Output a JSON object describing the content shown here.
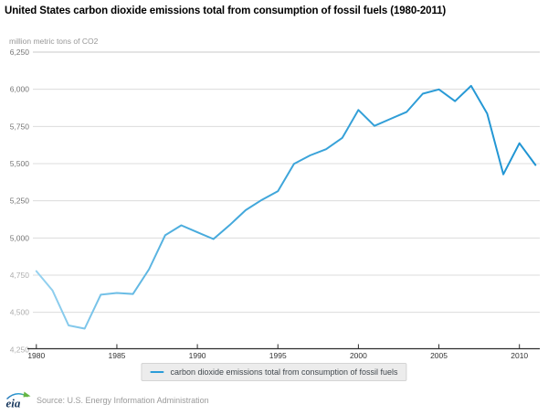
{
  "page": {
    "title": "United States carbon dioxide emissions total from consumption of fossil fuels (1980-2011)",
    "unit_label": "million metric tons of CO2"
  },
  "chart_data": {
    "type": "line",
    "title": "United States carbon dioxide emissions total from consumption of fossil fuels (1980-2011)",
    "ylabel": "million metric tons of CO2",
    "xlabel": "",
    "ylim": [
      4250,
      6250
    ],
    "ytick_step": 250,
    "grid": true,
    "legend_position": "bottom",
    "x": [
      1980,
      1981,
      1982,
      1983,
      1984,
      1985,
      1986,
      1987,
      1988,
      1989,
      1990,
      1991,
      1992,
      1993,
      1994,
      1995,
      1996,
      1997,
      1998,
      1999,
      2000,
      2001,
      2002,
      2003,
      2004,
      2005,
      2006,
      2007,
      2008,
      2009,
      2010,
      2011
    ],
    "series": [
      {
        "name": "carbon dioxide emissions total from consumption of fossil fuels",
        "values": [
          4777,
          4648,
          4412,
          4390,
          4618,
          4630,
          4623,
          4790,
          5018,
          5085,
          5038,
          4993,
          5086,
          5187,
          5256,
          5315,
          5499,
          5555,
          5597,
          5673,
          5861,
          5754,
          5801,
          5848,
          5970,
          5999,
          5920,
          6023,
          5837,
          5428,
          5637,
          5491
        ]
      }
    ],
    "yticks": [
      {
        "value": 6250,
        "label": "6,250",
        "dim": false
      },
      {
        "value": 6000,
        "label": "6,000",
        "dim": false
      },
      {
        "value": 5750,
        "label": "5,750",
        "dim": false
      },
      {
        "value": 5500,
        "label": "5,500",
        "dim": false
      },
      {
        "value": 5250,
        "label": "5,250",
        "dim": false
      },
      {
        "value": 5000,
        "label": "5,000",
        "dim": false
      },
      {
        "value": 4750,
        "label": "4,750",
        "dim": true
      },
      {
        "value": 4500,
        "label": "4,500",
        "dim": true
      },
      {
        "value": 4250,
        "label": "4,250",
        "dim": true
      }
    ],
    "xticks": [
      {
        "year": 1980,
        "label": "1980"
      },
      {
        "year": 1985,
        "label": "1985"
      },
      {
        "year": 1990,
        "label": "1990"
      },
      {
        "year": 1995,
        "label": "1995"
      },
      {
        "year": 2000,
        "label": "2000"
      },
      {
        "year": 2005,
        "label": "2005"
      },
      {
        "year": 2010,
        "label": "2010"
      }
    ],
    "line_colors": [
      "#96d2f0",
      "#4aacdd",
      "#1e94d3"
    ],
    "grid_color": "#dcdcdc",
    "grid_color_top": "#c8c8c8",
    "axis_color": "#2e2e2e",
    "axis_label_color": "#757575",
    "axis_label_dim_color": "#aeaeae",
    "xtick_label_color": "#333333"
  },
  "legend": {
    "label": "carbon dioxide emissions total from consumption of fossil fuels",
    "swatch_color": "#2a9cd8"
  },
  "footer": {
    "logo_text": "eia",
    "source": "Source: U.S. Energy Information Administration"
  }
}
